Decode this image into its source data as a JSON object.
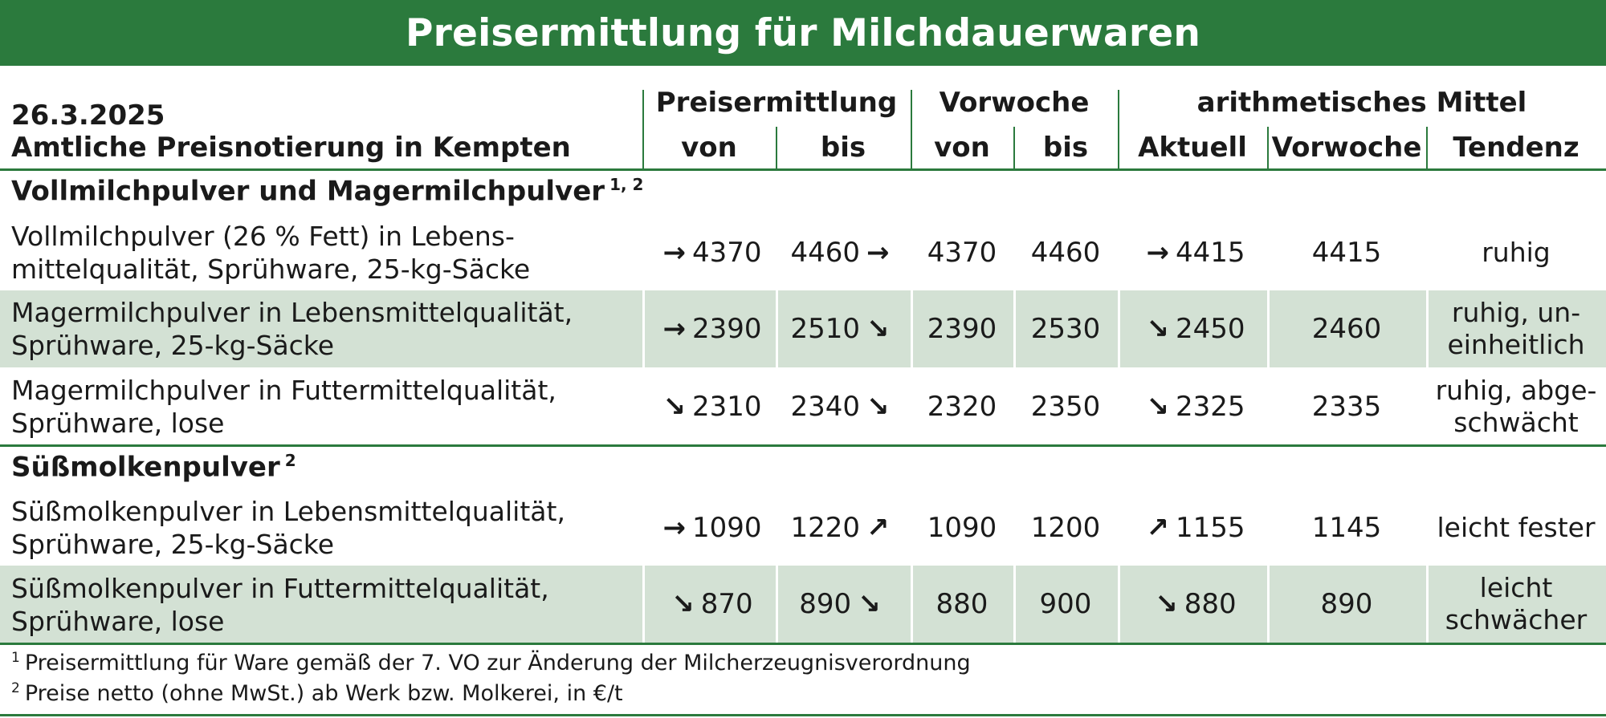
{
  "title": "Preisermittlung für Milchdauerwaren",
  "header": {
    "date": "26.3.2025",
    "subtitle": "Amtliche Preisnotierung in Kempten",
    "groups": [
      "Preisermittlung",
      "Vorwoche",
      "arithmetisches Mittel"
    ],
    "columns": [
      "von",
      "bis",
      "von",
      "bis",
      "Aktuell",
      "Vorwoche",
      "Tendenz"
    ]
  },
  "sections": [
    {
      "name": "Vollmilchpulver und Magermilchpulver",
      "footnotes": "1, 2",
      "rows": [
        {
          "label": [
            "Vollmilchpulver (26 % Fett) in Lebens-",
            "mittelqualität, Sprühware, 25-kg-Säcke"
          ],
          "von_arrow": "→",
          "von": "4370",
          "bis": "4460",
          "bis_arrow": "→",
          "vw_von": "4370",
          "vw_bis": "4460",
          "akt_arrow": "→",
          "aktuell": "4415",
          "vorwoche": "4415",
          "tendenz": [
            "ruhig"
          ]
        },
        {
          "label": [
            "Magermilchpulver in Lebensmittelqualität,",
            "Sprühware, 25-kg-Säcke"
          ],
          "von_arrow": "→",
          "von": "2390",
          "bis": "2510",
          "bis_arrow": "↘",
          "vw_von": "2390",
          "vw_bis": "2530",
          "akt_arrow": "↘",
          "aktuell": "2450",
          "vorwoche": "2460",
          "tendenz": [
            "ruhig, un-",
            "einheitlich"
          ]
        },
        {
          "label": [
            "Magermilchpulver in Futtermittelqualität,",
            "Sprühware, lose"
          ],
          "von_arrow": "↘",
          "von": "2310",
          "bis": "2340",
          "bis_arrow": "↘",
          "vw_von": "2320",
          "vw_bis": "2350",
          "akt_arrow": "↘",
          "aktuell": "2325",
          "vorwoche": "2335",
          "tendenz": [
            "ruhig, abge-",
            "schwächt"
          ]
        }
      ]
    },
    {
      "name": "Süßmolkenpulver",
      "footnotes": "2",
      "rows": [
        {
          "label": [
            "Süßmolkenpulver in Lebensmittelqualität,",
            "Sprühware, 25-kg-Säcke"
          ],
          "von_arrow": "→",
          "von": "1090",
          "bis": "1220",
          "bis_arrow": "↗",
          "vw_von": "1090",
          "vw_bis": "1200",
          "akt_arrow": "↗",
          "aktuell": "1155",
          "vorwoche": "1145",
          "tendenz": [
            "leicht fester"
          ]
        },
        {
          "label": [
            "Süßmolkenpulver in Futtermittelqualität,",
            "Sprühware, lose"
          ],
          "von_arrow": "↘",
          "von": "870",
          "bis": "890",
          "bis_arrow": "↘",
          "vw_von": "880",
          "vw_bis": "900",
          "akt_arrow": "↘",
          "aktuell": "880",
          "vorwoche": "890",
          "tendenz": [
            "leicht",
            "schwächer"
          ]
        }
      ]
    }
  ],
  "footnotes": [
    {
      "mark": "1",
      "text": "Preisermittlung für Ware gemäß der 7. VO zur Änderung der Milcherzeugnisverordnung"
    },
    {
      "mark": "2",
      "text": "Preise netto (ohne MwSt.) ab Werk bzw. Molkerei, in €/t"
    }
  ],
  "colors": {
    "accent": "#2b7a3d",
    "band": "#d3e1d4"
  }
}
